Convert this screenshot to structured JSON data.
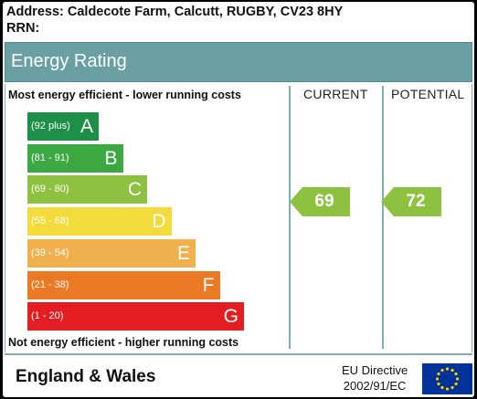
{
  "header": {
    "address": "Address: Caldecote Farm, Calcutt, RUGBY, CV23 8HY",
    "rrn": "RRN:"
  },
  "banner": {
    "title": "Energy Rating"
  },
  "chart": {
    "top_note": "Most energy efficient - lower running costs",
    "bottom_note": "Not energy efficient - higher running costs",
    "current_header": "CURRENT",
    "potential_header": "POTENTIAL",
    "bands": [
      {
        "range": "(92 plus)",
        "letter": "A",
        "color": "#1d8f46"
      },
      {
        "range": "(81 - 91)",
        "letter": "B",
        "color": "#3ca842"
      },
      {
        "range": "(69 - 80)",
        "letter": "C",
        "color": "#8ec13f"
      },
      {
        "range": "(55 - 68)",
        "letter": "D",
        "color": "#f2db3b"
      },
      {
        "range": "(39 - 54)",
        "letter": "E",
        "color": "#f0b04d"
      },
      {
        "range": "(21 - 38)",
        "letter": "F",
        "color": "#eb7a25"
      },
      {
        "range": "(1 - 20)",
        "letter": "G",
        "color": "#e41d22"
      }
    ],
    "current": {
      "value": "69",
      "band": "C",
      "color": "#8ec13f"
    },
    "potential": {
      "value": "72",
      "band": "C",
      "color": "#8ec13f"
    }
  },
  "footer": {
    "region": "England & Wales",
    "directive_line1": "EU Directive",
    "directive_line2": "2002/91/EC",
    "flag_icon": "eu-flag-icon"
  }
}
